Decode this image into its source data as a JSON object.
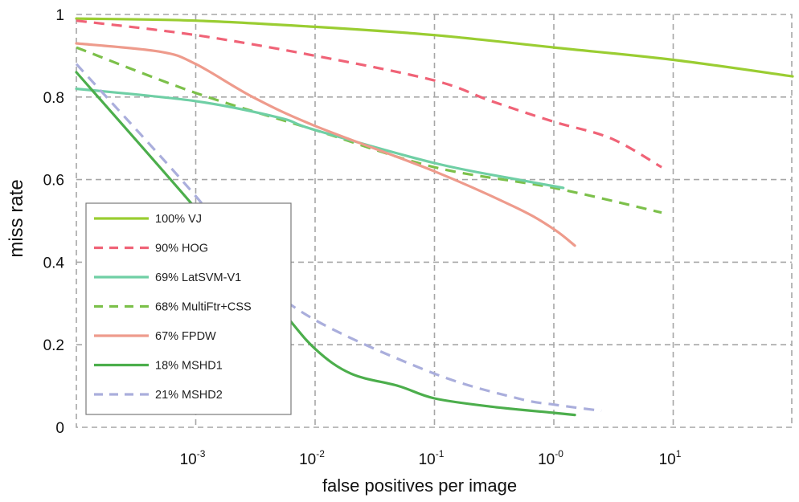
{
  "chart_data": {
    "type": "line",
    "title": "",
    "xlabel": "false positives per image",
    "ylabel": "miss rate",
    "x_scale": "log",
    "xlim": [
      0.0001,
      1000
    ],
    "ylim": [
      0,
      1
    ],
    "grid": true,
    "grid_style": "dashed",
    "legend_position": "bottom-left",
    "x_ticks": [
      {
        "value": 0.001,
        "base": "10",
        "exp": "-3"
      },
      {
        "value": 0.01,
        "base": "10",
        "exp": "-2"
      },
      {
        "value": 0.1,
        "base": "10",
        "exp": "-1"
      },
      {
        "value": 1,
        "base": "10",
        "exp": "-0"
      },
      {
        "value": 10,
        "base": "10",
        "exp": "1"
      }
    ],
    "y_ticks": [
      "0",
      "0.2",
      "0.4",
      "0.6",
      "0.8",
      "1"
    ],
    "series": [
      {
        "name": "100% VJ",
        "color": "#9acd32",
        "dashed": false,
        "points": [
          [
            0.0001,
            0.99
          ],
          [
            0.001,
            0.985
          ],
          [
            0.01,
            0.97
          ],
          [
            0.1,
            0.95
          ],
          [
            1,
            0.92
          ],
          [
            10,
            0.89
          ],
          [
            100,
            0.85
          ]
        ]
      },
      {
        "name": "90% HOG",
        "color": "#f06377",
        "dashed": true,
        "points": [
          [
            0.0001,
            0.985
          ],
          [
            0.001,
            0.95
          ],
          [
            0.01,
            0.9
          ],
          [
            0.1,
            0.84
          ],
          [
            0.3,
            0.79
          ],
          [
            1,
            0.74
          ],
          [
            3,
            0.7
          ],
          [
            8,
            0.63
          ]
        ]
      },
      {
        "name": "69% LatSVM-V1",
        "color": "#6fcfa5",
        "dashed": false,
        "points": [
          [
            0.0001,
            0.82
          ],
          [
            0.001,
            0.79
          ],
          [
            0.005,
            0.75
          ],
          [
            0.01,
            0.72
          ],
          [
            0.1,
            0.64
          ],
          [
            0.5,
            0.6
          ],
          [
            1.2,
            0.58
          ]
        ]
      },
      {
        "name": "68% MultiFtr+CSS",
        "color": "#7cc04a",
        "dashed": true,
        "points": [
          [
            0.0001,
            0.92
          ],
          [
            0.001,
            0.81
          ],
          [
            0.01,
            0.72
          ],
          [
            0.1,
            0.63
          ],
          [
            1,
            0.58
          ],
          [
            8,
            0.52
          ]
        ]
      },
      {
        "name": "67% FPDW",
        "color": "#ee9b8c",
        "dashed": false,
        "points": [
          [
            0.0001,
            0.93
          ],
          [
            0.0005,
            0.91
          ],
          [
            0.001,
            0.88
          ],
          [
            0.003,
            0.8
          ],
          [
            0.01,
            0.73
          ],
          [
            0.1,
            0.62
          ],
          [
            0.5,
            0.53
          ],
          [
            1,
            0.48
          ],
          [
            1.5,
            0.44
          ]
        ]
      },
      {
        "name": "18% MSHD1",
        "color": "#4cae4c",
        "dashed": false,
        "points": [
          [
            0.0001,
            0.86
          ],
          [
            0.001,
            0.53
          ],
          [
            0.005,
            0.29
          ],
          [
            0.01,
            0.19
          ],
          [
            0.02,
            0.13
          ],
          [
            0.05,
            0.1
          ],
          [
            0.1,
            0.07
          ],
          [
            0.3,
            0.05
          ],
          [
            1,
            0.035
          ],
          [
            1.5,
            0.03
          ]
        ]
      },
      {
        "name": "21% MSHD2",
        "color": "#aaaedc",
        "dashed": true,
        "points": [
          [
            0.0001,
            0.88
          ],
          [
            0.001,
            0.56
          ],
          [
            0.003,
            0.38
          ],
          [
            0.01,
            0.26
          ],
          [
            0.1,
            0.13
          ],
          [
            0.5,
            0.07
          ],
          [
            1,
            0.055
          ],
          [
            2.5,
            0.04
          ]
        ]
      }
    ]
  }
}
